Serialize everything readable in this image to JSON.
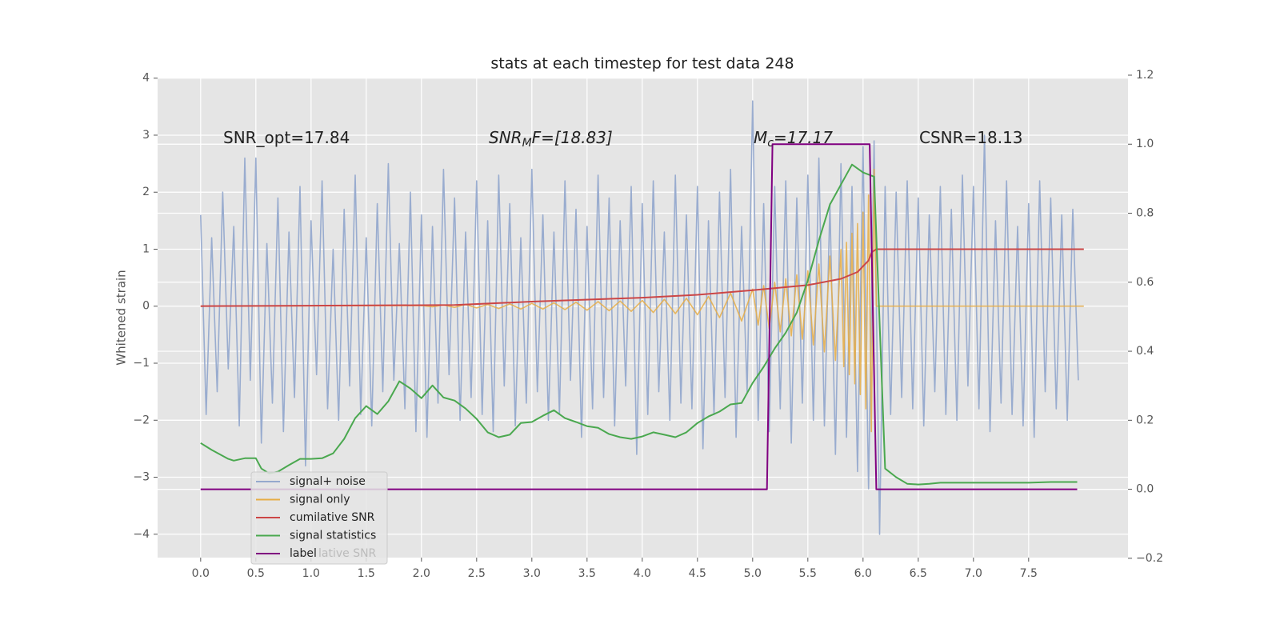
{
  "chart_data": {
    "type": "line",
    "title": "stats at each timestep for test data 248",
    "ylabel": "Whitened strain",
    "xlim": [
      -0.39,
      8.4
    ],
    "ylim": [
      -4.41,
      4.01
    ],
    "y2lim": [
      -0.198,
      1.193
    ],
    "xticks": [
      {
        "value": 0,
        "label": "0.0"
      },
      {
        "value": 0.5,
        "label": "0.5"
      },
      {
        "value": 1,
        "label": "1.0"
      },
      {
        "value": 1.5,
        "label": "1.5"
      },
      {
        "value": 2,
        "label": "2.0"
      },
      {
        "value": 2.5,
        "label": "2.5"
      },
      {
        "value": 3,
        "label": "3.0"
      },
      {
        "value": 3.5,
        "label": "3.5"
      },
      {
        "value": 4,
        "label": "4.0"
      },
      {
        "value": 4.5,
        "label": "4.5"
      },
      {
        "value": 5,
        "label": "5.0"
      },
      {
        "value": 5.5,
        "label": "5.5"
      },
      {
        "value": 6,
        "label": "6.0"
      },
      {
        "value": 6.5,
        "label": "6.5"
      },
      {
        "value": 7,
        "label": "7.0"
      },
      {
        "value": 7.5,
        "label": "7.5"
      }
    ],
    "yticks": [
      4,
      3,
      2,
      1,
      0,
      {
        "value": -1,
        "label": "−1"
      },
      {
        "value": -2,
        "label": "−2"
      },
      {
        "value": -3,
        "label": "−3"
      },
      {
        "value": -4,
        "label": "−4"
      }
    ],
    "y2ticks": [
      {
        "value": 1.2,
        "label": "1.2"
      },
      {
        "value": 1,
        "label": "1.0"
      },
      {
        "value": 0.8,
        "label": "0.8"
      },
      {
        "value": 0.6,
        "label": "0.6"
      },
      {
        "value": 0.4,
        "label": "0.4"
      },
      {
        "value": 0.2,
        "label": "0.2"
      },
      {
        "value": 0,
        "label": "0.0"
      },
      {
        "value": -0.2,
        "label": "−0.2"
      }
    ],
    "grid": true,
    "legend_loc": "lower left",
    "legend_ghost": "lative SNR",
    "annotations": [
      {
        "base": "SNR_opt=17.84"
      },
      {
        "base": "SNR",
        "sub": "M",
        "rest": "F=[18.83]"
      },
      {
        "base": "M",
        "sub": "c",
        "rest": "=17.17"
      },
      {
        "base": "CSNR=18.13"
      }
    ],
    "series": [
      {
        "name": "signal+ noise",
        "color": "#95a9cd",
        "axis": "y",
        "x": [
          0,
          0.05,
          0.1,
          0.15,
          0.2,
          0.25,
          0.3,
          0.35,
          0.4,
          0.45,
          0.5,
          0.55,
          0.6,
          0.65,
          0.7,
          0.75,
          0.8,
          0.85,
          0.9,
          0.95,
          1,
          1.05,
          1.1,
          1.15,
          1.2,
          1.25,
          1.3,
          1.35,
          1.4,
          1.45,
          1.5,
          1.55,
          1.6,
          1.65,
          1.7,
          1.75,
          1.8,
          1.85,
          1.9,
          1.95,
          2,
          2.05,
          2.1,
          2.15,
          2.2,
          2.25,
          2.3,
          2.35,
          2.4,
          2.45,
          2.5,
          2.55,
          2.6,
          2.65,
          2.7,
          2.75,
          2.8,
          2.85,
          2.9,
          2.95,
          3,
          3.05,
          3.1,
          3.15,
          3.2,
          3.25,
          3.3,
          3.35,
          3.4,
          3.45,
          3.5,
          3.55,
          3.6,
          3.65,
          3.7,
          3.75,
          3.8,
          3.85,
          3.9,
          3.95,
          4,
          4.05,
          4.1,
          4.15,
          4.2,
          4.25,
          4.3,
          4.35,
          4.4,
          4.45,
          4.5,
          4.55,
          4.6,
          4.65,
          4.7,
          4.75,
          4.8,
          4.85,
          4.9,
          4.95,
          5,
          5.05,
          5.1,
          5.15,
          5.2,
          5.25,
          5.3,
          5.35,
          5.4,
          5.45,
          5.5,
          5.55,
          5.6,
          5.65,
          5.7,
          5.75,
          5.8,
          5.85,
          5.9,
          5.95,
          6,
          6.05,
          6.1,
          6.15,
          6.2,
          6.25,
          6.3,
          6.35,
          6.4,
          6.45,
          6.5,
          6.55,
          6.6,
          6.65,
          6.7,
          6.75,
          6.8,
          6.85,
          6.9,
          6.95,
          7,
          7.05,
          7.1,
          7.15,
          7.2,
          7.25,
          7.3,
          7.35,
          7.4,
          7.45,
          7.5,
          7.55,
          7.6,
          7.65,
          7.7,
          7.75,
          7.8,
          7.85,
          7.9,
          7.95
        ],
        "values": [
          1.6,
          -1.9,
          1.2,
          -1.5,
          2.0,
          -1.1,
          1.4,
          -2.1,
          2.6,
          -1.3,
          2.6,
          -2.4,
          1.1,
          -1.7,
          1.9,
          -2.2,
          1.3,
          -1.6,
          2.1,
          -2.8,
          1.5,
          -1.2,
          2.2,
          -1.8,
          1.0,
          -2.0,
          1.7,
          -1.4,
          2.3,
          -1.9,
          1.2,
          -2.1,
          1.8,
          -1.5,
          2.5,
          -1.3,
          1.1,
          -1.8,
          2.0,
          -2.2,
          1.6,
          -2.3,
          1.4,
          -1.7,
          2.4,
          -1.2,
          1.9,
          -2.0,
          1.3,
          -1.6,
          2.2,
          -1.9,
          1.5,
          -2.2,
          2.3,
          -1.4,
          1.8,
          -2.1,
          1.2,
          -1.7,
          2.4,
          -1.5,
          1.6,
          -2.0,
          1.3,
          -1.9,
          2.2,
          -1.3,
          1.7,
          -2.3,
          1.4,
          -1.8,
          2.3,
          -1.6,
          1.9,
          -2.1,
          1.5,
          -1.4,
          2.1,
          -2.6,
          1.8,
          -1.9,
          2.2,
          -1.5,
          1.3,
          -2.0,
          2.3,
          -1.7,
          1.6,
          -1.8,
          2.1,
          -2.5,
          1.5,
          -1.9,
          2.0,
          -1.6,
          2.4,
          -2.3,
          1.4,
          -1.5,
          3.6,
          -2.0,
          1.8,
          -2.2,
          2.1,
          -1.8,
          2.2,
          -2.4,
          1.9,
          -1.7,
          2.3,
          -2.0,
          2.6,
          -2.1,
          1.8,
          -2.6,
          2.5,
          -2.3,
          2.1,
          -2.9,
          2.8,
          -3.2,
          2.9,
          -4.0,
          2.1,
          -1.9,
          2.0,
          -1.6,
          2.2,
          -1.8,
          1.9,
          -2.1,
          1.6,
          -1.5,
          2.1,
          -1.9,
          1.7,
          -2.0,
          2.3,
          -1.4,
          2.1,
          -1.8,
          3.0,
          -2.2,
          1.5,
          -1.7,
          2.2,
          -1.9,
          1.4,
          -2.1,
          1.8,
          -2.3,
          2.2,
          -1.5,
          1.9,
          -1.8,
          1.6,
          -2.0,
          1.7,
          -1.3
        ]
      },
      {
        "name": "signal only",
        "color": "#e6ad45",
        "axis": "y",
        "x": [
          0,
          2.0,
          2.1,
          2.2,
          2.3,
          2.4,
          2.5,
          2.6,
          2.7,
          2.8,
          2.9,
          3.0,
          3.1,
          3.2,
          3.3,
          3.4,
          3.5,
          3.6,
          3.7,
          3.8,
          3.9,
          4.0,
          4.1,
          4.2,
          4.3,
          4.4,
          4.5,
          4.6,
          4.7,
          4.8,
          4.9,
          5.0,
          5.05,
          5.1,
          5.15,
          5.2,
          5.25,
          5.3,
          5.35,
          5.4,
          5.45,
          5.5,
          5.55,
          5.6,
          5.65,
          5.7,
          5.75,
          5.8,
          5.825,
          5.85,
          5.875,
          5.9,
          5.925,
          5.95,
          5.975,
          6.0,
          6.025,
          6.05,
          6.075,
          6.1,
          6.12,
          8.0
        ],
        "values": [
          0,
          0.01,
          -0.01,
          0.02,
          -0.02,
          0.03,
          -0.03,
          0.03,
          -0.04,
          0.04,
          -0.05,
          0.05,
          -0.05,
          0.06,
          -0.06,
          0.07,
          -0.07,
          0.08,
          -0.08,
          0.09,
          -0.09,
          0.1,
          -0.11,
          0.12,
          -0.13,
          0.14,
          -0.15,
          0.17,
          -0.2,
          0.23,
          -0.26,
          0.3,
          -0.33,
          0.36,
          -0.39,
          0.42,
          -0.45,
          0.48,
          -0.52,
          0.55,
          -0.58,
          0.62,
          -0.68,
          0.74,
          -0.8,
          0.88,
          -0.95,
          1.0,
          -1.06,
          1.12,
          -1.2,
          1.28,
          -1.36,
          1.45,
          -1.55,
          1.65,
          -1.8,
          1.95,
          -2.2,
          2.4,
          0,
          0
        ]
      },
      {
        "name": "cumilative SNR",
        "color": "#cc4646",
        "axis": "y",
        "x": [
          0,
          2.3,
          3.0,
          4.0,
          4.5,
          5.0,
          5.5,
          5.8,
          5.95,
          6.05,
          6.08,
          6.12,
          8.0
        ],
        "values": [
          0,
          0.02,
          0.08,
          0.15,
          0.2,
          0.28,
          0.37,
          0.48,
          0.6,
          0.8,
          0.95,
          1.0,
          1.0
        ]
      },
      {
        "name": "signal statistics",
        "color": "#4aa84f",
        "axis": "y2",
        "x": [
          0,
          0.1,
          0.25,
          0.3,
          0.4,
          0.5,
          0.55,
          0.62,
          0.7,
          0.8,
          0.9,
          1.0,
          1.1,
          1.2,
          1.3,
          1.4,
          1.5,
          1.6,
          1.7,
          1.8,
          1.9,
          2.0,
          2.1,
          2.2,
          2.3,
          2.4,
          2.5,
          2.6,
          2.7,
          2.8,
          2.9,
          3.0,
          3.1,
          3.2,
          3.3,
          3.4,
          3.5,
          3.6,
          3.7,
          3.8,
          3.9,
          4.0,
          4.1,
          4.2,
          4.3,
          4.4,
          4.5,
          4.6,
          4.7,
          4.8,
          4.9,
          5.0,
          5.1,
          5.2,
          5.3,
          5.4,
          5.5,
          5.6,
          5.7,
          5.8,
          5.9,
          6.0,
          6.1,
          6.2,
          6.3,
          6.4,
          6.5,
          6.6,
          6.7,
          7.5,
          7.7,
          7.94
        ],
        "values": [
          0.134,
          0.114,
          0.088,
          0.083,
          0.09,
          0.09,
          0.06,
          0.046,
          0.051,
          0.07,
          0.088,
          0.088,
          0.09,
          0.104,
          0.146,
          0.206,
          0.241,
          0.218,
          0.255,
          0.313,
          0.292,
          0.264,
          0.301,
          0.266,
          0.257,
          0.234,
          0.204,
          0.165,
          0.151,
          0.158,
          0.192,
          0.195,
          0.213,
          0.229,
          0.206,
          0.195,
          0.183,
          0.178,
          0.16,
          0.151,
          0.146,
          0.153,
          0.165,
          0.158,
          0.151,
          0.165,
          0.192,
          0.211,
          0.225,
          0.246,
          0.25,
          0.308,
          0.355,
          0.408,
          0.454,
          0.512,
          0.605,
          0.721,
          0.825,
          0.883,
          0.941,
          0.918,
          0.906,
          0.06,
          0.035,
          0.016,
          0.014,
          0.016,
          0.019,
          0.019,
          0.021,
          0.021
        ]
      },
      {
        "name": "label",
        "color": "#800080",
        "axis": "y2",
        "x": [
          0,
          5.13,
          5.18,
          6.06,
          6.12,
          7.94
        ],
        "values": [
          0,
          0,
          1,
          1,
          0,
          0
        ]
      }
    ]
  }
}
